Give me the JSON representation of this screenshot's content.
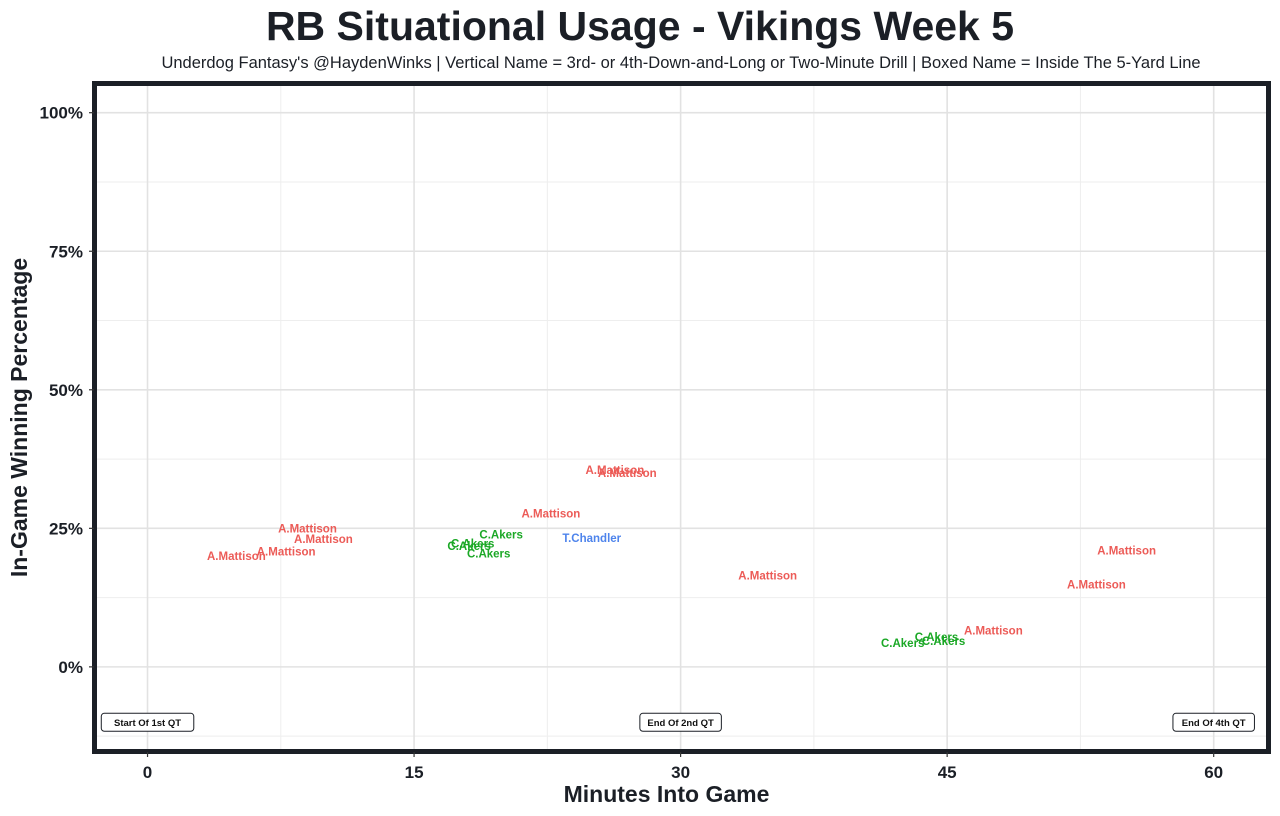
{
  "chart_data": {
    "type": "scatter",
    "title": "RB Situational Usage - Vikings Week 5",
    "subtitle": "Underdog Fantasy's @HaydenWinks | Vertical Name = 3rd- or 4th-Down-and-Long or Two-Minute Drill | Boxed Name = Inside The 5-Yard Line",
    "xlabel": "Minutes Into Game",
    "ylabel": "In-Game Winning Percentage",
    "xlim": [
      -2.9,
      63.0
    ],
    "ylim": [
      -15.0,
      105.0
    ],
    "grid": true,
    "x_ticks": [
      0,
      15,
      30,
      45,
      60
    ],
    "x_tick_labels": [
      "0",
      "15",
      "30",
      "45",
      "60"
    ],
    "y_ticks": [
      0,
      25,
      50,
      75,
      100
    ],
    "y_tick_labels": [
      "0%",
      "25%",
      "50%",
      "75%",
      "100%"
    ],
    "colors": {
      "A.Mattison": "#ec5b57",
      "C.Akers": "#1ba826",
      "T.Chandler": "#4e84ec"
    },
    "points": [
      {
        "player": "A.Mattison",
        "x": 5.0,
        "y": 20.0
      },
      {
        "player": "A.Mattison",
        "x": 7.8,
        "y": 20.8
      },
      {
        "player": "A.Mattison",
        "x": 9.0,
        "y": 25.0
      },
      {
        "player": "A.Mattison",
        "x": 9.9,
        "y": 23.1
      },
      {
        "player": "C.Akers",
        "x": 18.1,
        "y": 21.8
      },
      {
        "player": "C.Akers",
        "x": 18.3,
        "y": 22.3
      },
      {
        "player": "C.Akers",
        "x": 19.2,
        "y": 20.5
      },
      {
        "player": "C.Akers",
        "x": 19.9,
        "y": 23.9
      },
      {
        "player": "A.Mattison",
        "x": 22.7,
        "y": 27.7
      },
      {
        "player": "T.Chandler",
        "x": 25.0,
        "y": 23.3
      },
      {
        "player": "A.Mattison",
        "x": 26.3,
        "y": 35.5
      },
      {
        "player": "A.Mattison",
        "x": 27.0,
        "y": 35.0
      },
      {
        "player": "A.Mattison",
        "x": 34.9,
        "y": 16.5
      },
      {
        "player": "C.Akers",
        "x": 42.5,
        "y": 4.3
      },
      {
        "player": "C.Akers",
        "x": 44.4,
        "y": 5.4
      },
      {
        "player": "C.Akers",
        "x": 44.8,
        "y": 4.7
      },
      {
        "player": "A.Mattison",
        "x": 47.6,
        "y": 6.6
      },
      {
        "player": "A.Mattison",
        "x": 53.4,
        "y": 14.9
      },
      {
        "player": "A.Mattison",
        "x": 55.1,
        "y": 21.0
      }
    ],
    "annotations": [
      {
        "label": "Start Of 1st QT",
        "x": 0,
        "y": -10
      },
      {
        "label": "End Of 2nd QT",
        "x": 30,
        "y": -10
      },
      {
        "label": "End Of 4th QT",
        "x": 60,
        "y": -10
      }
    ]
  }
}
